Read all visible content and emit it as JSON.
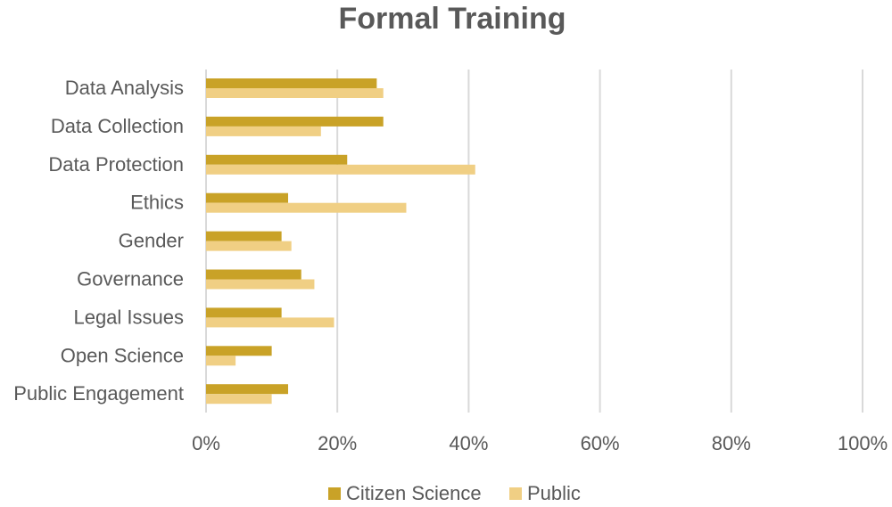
{
  "chart_data": {
    "type": "bar",
    "orientation": "horizontal",
    "title": "Formal Training",
    "xlabel": "",
    "ylabel": "",
    "categories": [
      "Data Analysis",
      "Data Collection",
      "Data Protection",
      "Ethics",
      "Gender",
      "Governance",
      "Legal Issues",
      "Open Science",
      "Public Engagement"
    ],
    "series": [
      {
        "name": "Citizen Science",
        "color": "#c9a227",
        "values": [
          26,
          27,
          21.5,
          12.5,
          11.5,
          14.5,
          11.5,
          10,
          12.5
        ]
      },
      {
        "name": "Public",
        "color": "#f0cf84",
        "values": [
          27,
          17.5,
          41,
          30.5,
          13,
          16.5,
          19.5,
          4.5,
          10
        ]
      }
    ],
    "xlim": [
      0,
      100
    ],
    "xticks": [
      "0%",
      "20%",
      "40%",
      "60%",
      "80%",
      "100%"
    ],
    "tick_values": [
      0,
      20,
      40,
      60,
      80,
      100
    ],
    "grid": true,
    "legend": "bottom"
  }
}
